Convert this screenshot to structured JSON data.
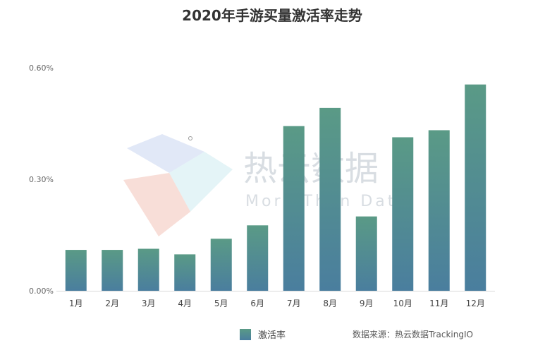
{
  "chart_data": {
    "type": "bar",
    "title": "2020年手游买量激活率走势",
    "categories": [
      "1月",
      "2月",
      "3月",
      "4月",
      "5月",
      "6月",
      "7月",
      "8月",
      "9月",
      "10月",
      "11月",
      "12月"
    ],
    "series": [
      {
        "name": "激活率",
        "values": [
          0.11,
          0.11,
          0.113,
          0.098,
          0.14,
          0.176,
          0.443,
          0.492,
          0.2,
          0.413,
          0.432,
          0.555
        ]
      }
    ],
    "ylim": [
      0,
      0.6
    ],
    "yticks": [
      "0.00%",
      "0.30%",
      "0.60%"
    ],
    "ytick_values": [
      0,
      0.3,
      0.6
    ],
    "grid": false,
    "legend_position": "bottom"
  },
  "colors": {
    "bar_top": "#5a9a86",
    "bar_bottom": "#4a7e9e"
  },
  "source": "数据来源：热云数据TrackingIO",
  "watermark": {
    "brand": "热云数据",
    "tagline": "More Than Data"
  }
}
